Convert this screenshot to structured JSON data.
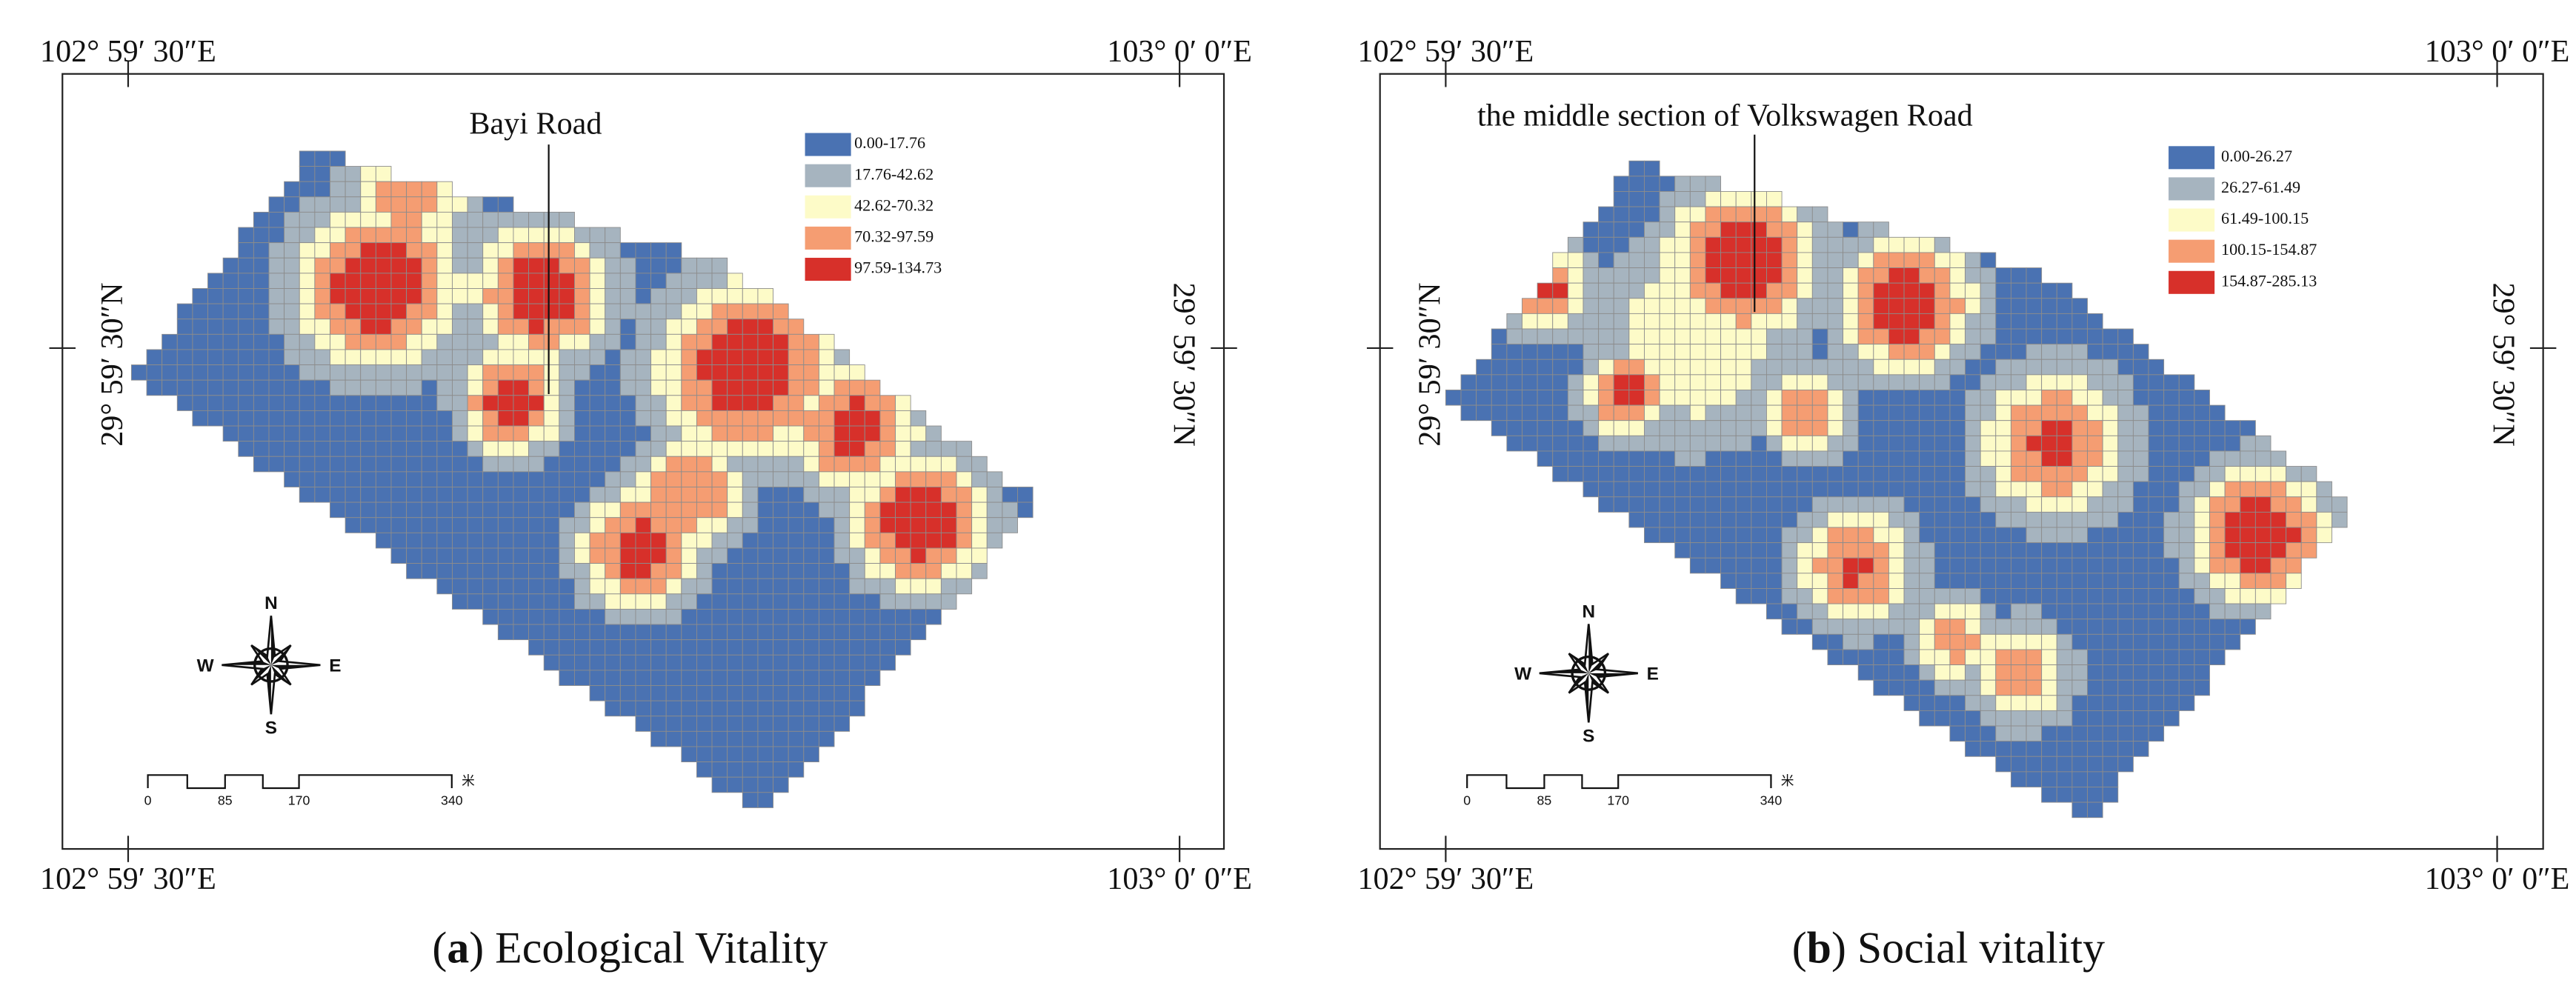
{
  "panels": [
    {
      "coords": {
        "lon_left": "102° 59′ 30″E",
        "lon_right": "103° 0′ 0″E",
        "lat": "29° 59′ 30″N"
      },
      "annotation": "Bayi Road",
      "legend": [
        {
          "label": "0.00-17.76",
          "color": "#4a72b2"
        },
        {
          "label": "17.76-42.62",
          "color": "#a6b4bf"
        },
        {
          "label": "42.62-70.32",
          "color": "#fdfbc8"
        },
        {
          "label": "70.32-97.59",
          "color": "#f59d72"
        },
        {
          "label": "97.59-134.73",
          "color": "#d7302a"
        }
      ],
      "compass": {
        "n": "N",
        "s": "S",
        "w": "W",
        "e": "E"
      },
      "scale": {
        "ticks": [
          "0",
          "85",
          "170",
          "340"
        ],
        "unit": "米"
      },
      "caption": {
        "open": "(",
        "letter": "a",
        "rest": ") Ecological Vitality"
      }
    },
    {
      "coords": {
        "lon_left": "102° 59′ 30″E",
        "lon_right": "103° 0′ 0″E",
        "lat": "29° 59′ 30″N"
      },
      "annotation": "the middle section of Volkswagen Road",
      "legend": [
        {
          "label": "0.00-26.27",
          "color": "#4a72b2"
        },
        {
          "label": "26.27-61.49",
          "color": "#a6b4bf"
        },
        {
          "label": "61.49-100.15",
          "color": "#fdfbc8"
        },
        {
          "label": "100.15-154.87",
          "color": "#f59d72"
        },
        {
          "label": "154.87-285.13",
          "color": "#d7302a"
        }
      ],
      "compass": {
        "n": "N",
        "s": "S",
        "w": "W",
        "e": "E"
      },
      "scale": {
        "ticks": [
          "0",
          "85",
          "170",
          "340"
        ],
        "unit": "米"
      },
      "caption": {
        "open": "(",
        "letter": "b",
        "rest": ") Social vitality"
      }
    }
  ]
}
